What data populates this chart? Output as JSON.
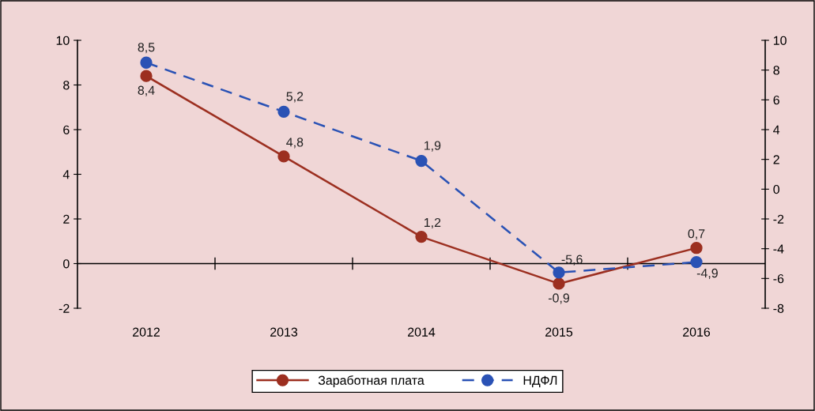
{
  "chart_data": {
    "type": "line",
    "categories": [
      "2012",
      "2013",
      "2014",
      "2015",
      "2016"
    ],
    "series": [
      {
        "name": "Заработная плата",
        "color": "#9c2f20",
        "line_style": "solid",
        "values": [
          8.4,
          4.8,
          1.2,
          -0.9,
          0.7
        ],
        "value_labels": [
          "8,4",
          "4,8",
          "1,2",
          "-0,9",
          "0,7"
        ]
      },
      {
        "name": "НДФЛ",
        "color": "#2a52b5",
        "line_style": "dashed",
        "axis": "y2",
        "values": [
          8.5,
          5.2,
          1.9,
          -5.6,
          -4.9
        ],
        "value_labels": [
          "8,5",
          "5,2",
          "1,9",
          "-5,6",
          "-4,9"
        ]
      }
    ],
    "ylim": [
      -2,
      10
    ],
    "yticks": [
      -2,
      0,
      2,
      4,
      6,
      8,
      10
    ],
    "y2lim": [
      -8,
      10
    ],
    "y2ticks": [
      -8,
      -6,
      -4,
      -2,
      0,
      2,
      4,
      6,
      8,
      10
    ],
    "ref_lines": [
      {
        "axis": "y",
        "value": 0,
        "color": "#000000"
      }
    ],
    "marker": "circle",
    "grid": false,
    "legend": "bottom"
  }
}
